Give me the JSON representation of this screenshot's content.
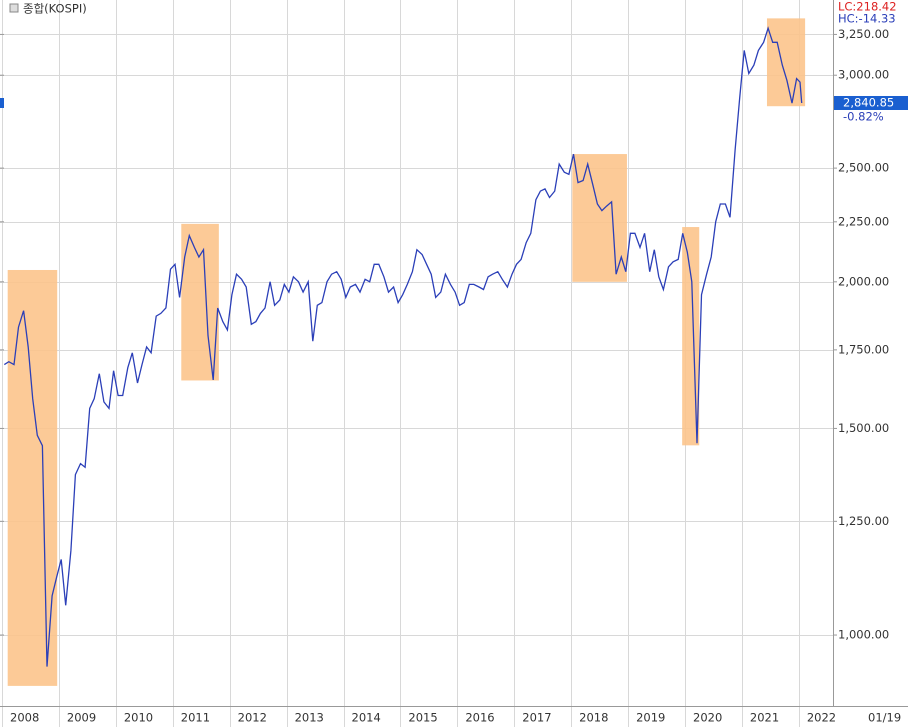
{
  "chart_data": {
    "type": "line",
    "title": "종합(KOSPI)",
    "log_scale": true,
    "grid": true,
    "lc_label": "LC:218.42",
    "hc_label": "HC:-14.33",
    "cursor_date": "01/19",
    "last_value": {
      "value": 2840.85,
      "label": "2,840.85"
    },
    "change": {
      "value": -0.82,
      "label": "-0.82%"
    },
    "xlim": [
      2008.0,
      2022.6
    ],
    "ylim": [
      870,
      3450
    ],
    "xticks": [
      2008,
      2009,
      2010,
      2011,
      2012,
      2013,
      2014,
      2015,
      2016,
      2017,
      2018,
      2019,
      2020,
      2021,
      2022
    ],
    "yticks": [
      {
        "value": 1000,
        "label": "1,000.00"
      },
      {
        "value": 1250,
        "label": "1,250.00"
      },
      {
        "value": 1500,
        "label": "1,500.00"
      },
      {
        "value": 1750,
        "label": "1,750.00"
      },
      {
        "value": 2000,
        "label": "2,000.00"
      },
      {
        "value": 2250,
        "label": "2,250.00"
      },
      {
        "value": 2500,
        "label": "2,500.00"
      },
      {
        "value": 3000,
        "label": "3,000.00"
      },
      {
        "value": 3250,
        "label": "3,250.00"
      }
    ],
    "highlights": [
      {
        "x": [
          2008.1,
          2008.97
        ],
        "y": [
          905,
          2047
        ],
        "color": "#fcc48c"
      },
      {
        "x": [
          2011.15,
          2011.81
        ],
        "y": [
          1648,
          2241
        ],
        "color": "#fcc48c"
      },
      {
        "x": [
          2018.02,
          2018.98
        ],
        "y": [
          2000,
          2570
        ],
        "color": "#fcc48c"
      },
      {
        "x": [
          2019.95,
          2020.25
        ],
        "y": [
          1451,
          2227
        ],
        "color": "#fcc48c"
      },
      {
        "x": [
          2021.44,
          2022.11
        ],
        "y": [
          2823,
          3354
        ],
        "color": "#fcc48c"
      }
    ],
    "x": [
      2008.04,
      2008.12,
      2008.21,
      2008.29,
      2008.38,
      2008.46,
      2008.54,
      2008.62,
      2008.71,
      2008.79,
      2008.88,
      2008.96,
      2009.04,
      2009.12,
      2009.21,
      2009.29,
      2009.38,
      2009.46,
      2009.54,
      2009.62,
      2009.71,
      2009.79,
      2009.88,
      2009.96,
      2010.04,
      2010.12,
      2010.21,
      2010.29,
      2010.38,
      2010.46,
      2010.54,
      2010.62,
      2010.71,
      2010.79,
      2010.88,
      2010.96,
      2011.04,
      2011.12,
      2011.21,
      2011.29,
      2011.38,
      2011.46,
      2011.54,
      2011.62,
      2011.71,
      2011.79,
      2011.88,
      2011.96,
      2012.04,
      2012.12,
      2012.21,
      2012.29,
      2012.38,
      2012.46,
      2012.54,
      2012.62,
      2012.71,
      2012.79,
      2012.88,
      2012.96,
      2013.04,
      2013.12,
      2013.21,
      2013.29,
      2013.38,
      2013.46,
      2013.54,
      2013.62,
      2013.71,
      2013.79,
      2013.88,
      2013.96,
      2014.04,
      2014.12,
      2014.21,
      2014.29,
      2014.38,
      2014.46,
      2014.54,
      2014.62,
      2014.71,
      2014.79,
      2014.88,
      2014.96,
      2015.04,
      2015.12,
      2015.21,
      2015.29,
      2015.38,
      2015.46,
      2015.54,
      2015.62,
      2015.71,
      2015.79,
      2015.88,
      2015.96,
      2016.04,
      2016.12,
      2016.21,
      2016.29,
      2016.38,
      2016.46,
      2016.54,
      2016.62,
      2016.71,
      2016.79,
      2016.88,
      2016.96,
      2017.04,
      2017.12,
      2017.21,
      2017.29,
      2017.38,
      2017.46,
      2017.54,
      2017.62,
      2017.71,
      2017.79,
      2017.88,
      2017.96,
      2018.04,
      2018.12,
      2018.21,
      2018.29,
      2018.38,
      2018.46,
      2018.54,
      2018.62,
      2018.71,
      2018.79,
      2018.88,
      2018.96,
      2019.04,
      2019.12,
      2019.21,
      2019.29,
      2019.38,
      2019.46,
      2019.54,
      2019.62,
      2019.71,
      2019.79,
      2019.88,
      2019.96,
      2020.04,
      2020.12,
      2020.21,
      2020.29,
      2020.38,
      2020.46,
      2020.54,
      2020.62,
      2020.71,
      2020.79,
      2020.88,
      2020.96,
      2021.04,
      2021.12,
      2021.21,
      2021.29,
      2021.38,
      2021.46,
      2021.54,
      2021.62,
      2021.71,
      2021.79,
      2021.88,
      2021.96,
      2022.02,
      2022.05
    ],
    "series": [
      {
        "name": "KOSPI",
        "color": "#2b3fb8",
        "values": [
          1700,
          1710,
          1700,
          1830,
          1890,
          1760,
          1590,
          1480,
          1450,
          940,
          1080,
          1120,
          1160,
          1060,
          1180,
          1370,
          1400,
          1390,
          1560,
          1590,
          1670,
          1580,
          1560,
          1680,
          1600,
          1600,
          1690,
          1740,
          1640,
          1700,
          1760,
          1740,
          1870,
          1880,
          1900,
          2050,
          2070,
          1940,
          2100,
          2190,
          2140,
          2100,
          2130,
          1800,
          1650,
          1900,
          1850,
          1820,
          1950,
          2030,
          2010,
          1980,
          1840,
          1850,
          1880,
          1900,
          2000,
          1910,
          1930,
          1990,
          1960,
          2020,
          2000,
          1960,
          2000,
          1780,
          1910,
          1920,
          2000,
          2030,
          2040,
          2010,
          1940,
          1980,
          1990,
          1960,
          2010,
          2000,
          2070,
          2070,
          2020,
          1960,
          1980,
          1920,
          1950,
          1990,
          2040,
          2130,
          2110,
          2070,
          2030,
          1940,
          1960,
          2030,
          1990,
          1960,
          1910,
          1920,
          1990,
          1990,
          1980,
          1970,
          2020,
          2030,
          2040,
          2010,
          1980,
          2030,
          2070,
          2090,
          2160,
          2200,
          2350,
          2390,
          2400,
          2360,
          2390,
          2520,
          2480,
          2470,
          2570,
          2430,
          2440,
          2520,
          2420,
          2330,
          2300,
          2320,
          2340,
          2030,
          2100,
          2040,
          2200,
          2200,
          2140,
          2200,
          2040,
          2130,
          2020,
          1970,
          2060,
          2080,
          2090,
          2200,
          2120,
          2000,
          1457,
          1950,
          2030,
          2100,
          2250,
          2330,
          2330,
          2270,
          2590,
          2870,
          3150,
          3010,
          3060,
          3150,
          3200,
          3290,
          3200,
          3200,
          3060,
          2970,
          2840,
          2980,
          2960,
          2840.85
        ]
      }
    ]
  }
}
